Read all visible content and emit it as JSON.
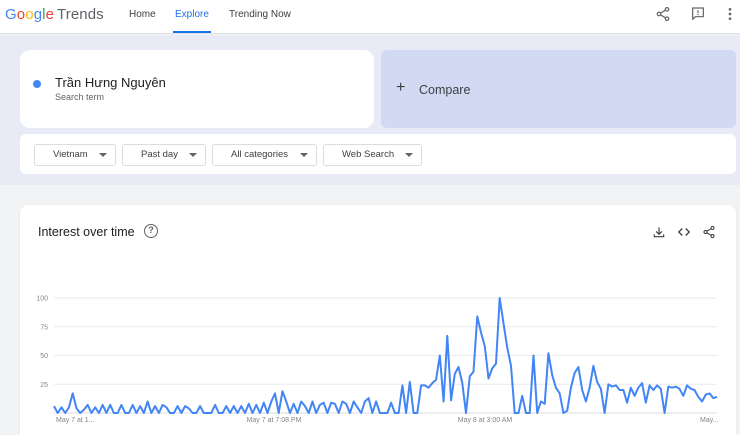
{
  "header": {
    "logo": {
      "letters": [
        "G",
        "o",
        "o",
        "g",
        "l",
        "e"
      ],
      "product": "Trends"
    },
    "nav": [
      {
        "label": "Home",
        "active": false
      },
      {
        "label": "Explore",
        "active": true
      },
      {
        "label": "Trending Now",
        "active": false
      }
    ],
    "icons": [
      "share-icon",
      "feedback-icon",
      "more-vert-icon"
    ]
  },
  "search": {
    "term": {
      "name": "Trần Hưng Nguyên",
      "sublabel": "Search term",
      "color": "#4285f4"
    },
    "compare_label": "Compare",
    "filters": [
      "Vietnam",
      "Past day",
      "All categories",
      "Web Search"
    ]
  },
  "chart_card": {
    "title": "Interest over time",
    "icons": [
      "help-icon",
      "download-icon",
      "embed-icon",
      "share-icon"
    ]
  },
  "chart_data": {
    "type": "line",
    "title": "Interest over time",
    "xlabel": "",
    "ylabel": "",
    "ylim": [
      0,
      100
    ],
    "yticks": [
      25,
      50,
      75,
      100
    ],
    "grid": true,
    "x_tick_labels": [
      "May 7 at 1...",
      "May 7 at 7:08 PM",
      "May 8 at 3:00 AM",
      "May..."
    ],
    "color": "#4285f4",
    "series": [
      {
        "values": [
          6,
          0,
          5,
          0,
          5,
          17,
          4,
          0,
          3,
          7,
          0,
          5,
          0,
          7,
          0,
          7,
          0,
          0,
          7,
          0,
          0,
          7,
          0,
          6,
          0,
          10,
          0,
          6,
          0,
          7,
          5,
          0,
          0,
          6,
          0,
          6,
          4,
          0,
          0,
          6,
          0,
          0,
          0,
          7,
          0,
          0,
          6,
          0,
          6,
          0,
          6,
          0,
          8,
          0,
          7,
          0,
          9,
          0,
          10,
          17,
          0,
          19,
          10,
          0,
          8,
          0,
          10,
          6,
          0,
          10,
          0,
          7,
          9,
          0,
          9,
          8,
          0,
          10,
          8,
          0,
          10,
          5,
          0,
          10,
          13,
          0,
          10,
          0,
          0,
          0,
          9,
          0,
          0,
          24,
          0,
          27,
          0,
          0,
          24,
          24,
          22,
          26,
          29,
          50,
          10,
          67,
          11,
          34,
          40,
          26,
          0,
          32,
          36,
          84,
          70,
          58,
          30,
          39,
          43,
          100,
          78,
          57,
          41,
          0,
          0,
          15,
          0,
          0,
          50,
          0,
          10,
          8,
          52,
          33,
          22,
          17,
          0,
          2,
          22,
          35,
          40,
          20,
          10,
          22,
          41,
          27,
          21,
          0,
          25,
          23,
          24,
          20,
          20,
          9,
          22,
          15,
          22,
          26,
          9,
          24,
          20,
          24,
          21,
          0,
          23,
          22,
          23,
          21,
          15,
          24,
          21,
          20,
          14,
          10,
          16,
          17,
          13,
          14
        ]
      }
    ]
  }
}
